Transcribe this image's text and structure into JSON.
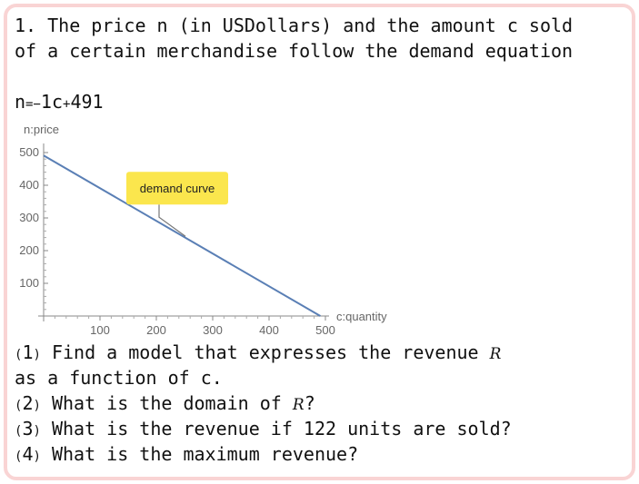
{
  "problem": {
    "line1": "1. The price n (in USDollars) and the amount c sold",
    "line2": "of a certain merchandise follow the demand equation",
    "equation": {
      "lhs": "n",
      "eq": "=",
      "minus": "−",
      "body": "1c",
      "plus": "+",
      "const": "491"
    }
  },
  "chart_data": {
    "type": "line",
    "xlabel": "c:quantity",
    "ylabel": "n:price",
    "xlim": [
      0,
      500
    ],
    "ylim": [
      0,
      500
    ],
    "x_ticks": [
      100,
      200,
      300,
      400,
      500
    ],
    "y_ticks": [
      100,
      200,
      300,
      400,
      500
    ],
    "series": [
      {
        "x": [
          0,
          491
        ],
        "y": [
          491,
          0
        ]
      }
    ],
    "annotation": {
      "text": "demand curve",
      "x": 250,
      "y": 241
    },
    "line_color": "#5a7fb5",
    "callout_color": "#fbe64d"
  },
  "questions": {
    "q1_num": "1",
    "q1_a": "Find a model that expresses the revenue ",
    "q1_sym": "R",
    "q1_b": "as a function of c.",
    "q2_num": "2",
    "q2_a": "What is the domain of ",
    "q2_sym": "R",
    "q2_b": "?",
    "q3_num": "3",
    "q3_text": "What is the revenue if 122 units are sold?",
    "q4_num": "4",
    "q4_text": "What is the maximum revenue?"
  }
}
